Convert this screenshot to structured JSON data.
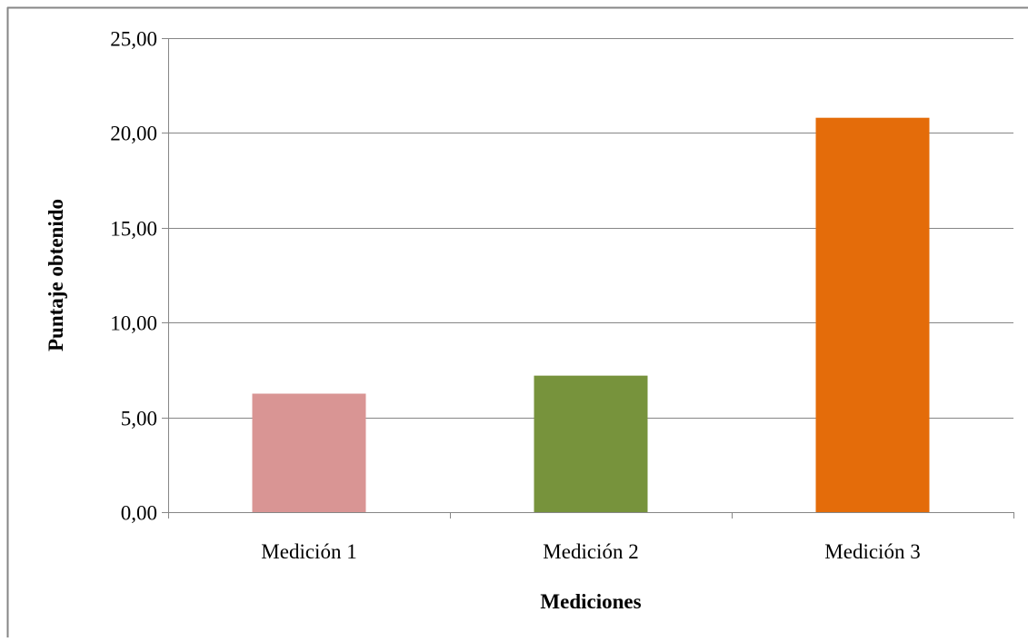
{
  "chart_data": {
    "type": "bar",
    "title": "",
    "xlabel": "Mediciones",
    "ylabel": "Puntaje obtenido",
    "categories": [
      "Medición 1",
      "Medición 2",
      "Medición 3"
    ],
    "values": [
      6.25,
      7.2,
      20.8
    ],
    "ylim": [
      0,
      25
    ],
    "yticks": [
      "0,00",
      "5,00",
      "10,00",
      "15,00",
      "20,00",
      "25,00"
    ],
    "ytick_values": [
      0,
      5,
      10,
      15,
      20,
      25
    ],
    "grid": true,
    "legend": "none",
    "bar_colors": [
      "#d99594",
      "#77933c",
      "#e46c0a"
    ],
    "gridline_color": "#868686",
    "frame_color": "#868686"
  }
}
